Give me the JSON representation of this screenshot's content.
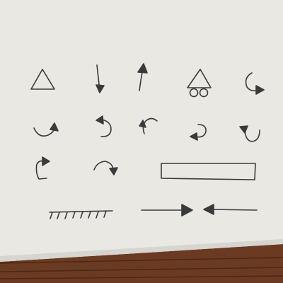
{
  "scene": {
    "colors": {
      "paper": "#e9e8e2",
      "paper_shadow": "#d6d5cf",
      "table": "#6b3a22",
      "table_dark": "#4e2714",
      "pencil": "#3a3a3a"
    },
    "sketches": [
      "triangle",
      "arrow-down",
      "arrow-up",
      "triangle-on-wheels",
      "curved-arrow-right",
      "curved-arrow-up",
      "curved-arrow-left",
      "curved-arrow-left",
      "curved-arrow-left",
      "curved-arrow-down",
      "curved-arrow-right",
      "curved-arrow-down",
      "rectangle",
      "hatched-ground",
      "arrow-right",
      "arrow-left"
    ]
  }
}
